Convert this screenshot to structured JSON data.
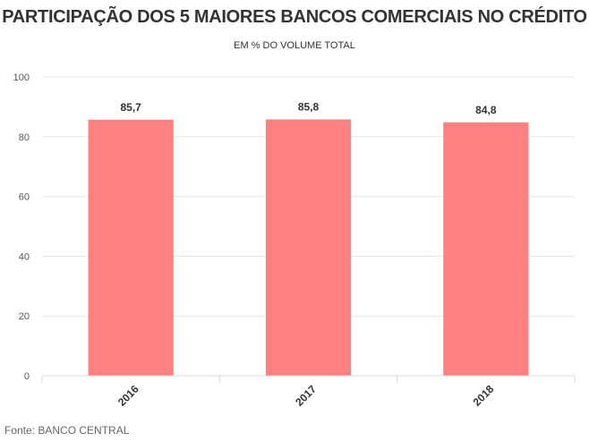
{
  "chart_data": {
    "type": "bar",
    "title": "PARTICIPAÇÃO DOS 5 MAIORES BANCOS COMERCIAIS NO CRÉDITO",
    "subtitle": "EM % DO VOLUME TOTAL",
    "categories": [
      "2016",
      "2017",
      "2018"
    ],
    "values": [
      85.7,
      85.8,
      84.8
    ],
    "data_labels": [
      "85,7",
      "85,8",
      "84,8"
    ],
    "ylim": [
      0,
      100
    ],
    "yticks": [
      0,
      20,
      40,
      60,
      80,
      100
    ],
    "grid": true,
    "legend": "none",
    "bar_color": "#ff8080",
    "source": "Fonte: BANCO CENTRAL"
  }
}
